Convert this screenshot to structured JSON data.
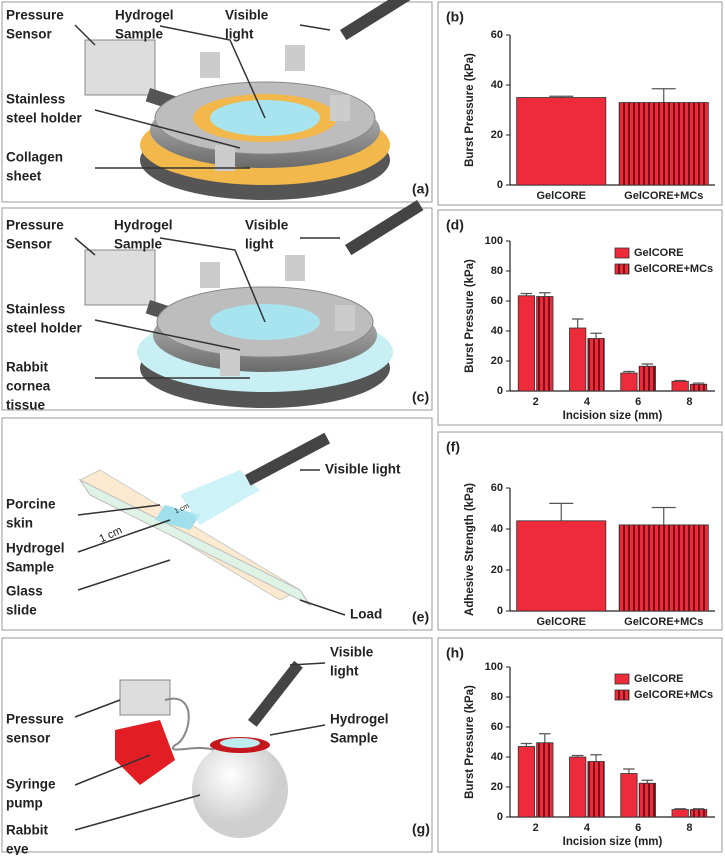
{
  "diagrams": [
    {
      "panel": "(a)",
      "labels": [
        [
          "Pressure",
          "Sensor"
        ],
        [
          "Hydrogel",
          "Sample"
        ],
        [
          "Visible",
          "light"
        ],
        [
          "Stainless",
          "steel holder"
        ],
        [
          "Collagen",
          "sheet"
        ]
      ]
    },
    {
      "panel": "(c)",
      "labels": [
        [
          "Pressure",
          "Sensor"
        ],
        [
          "Hydrogel",
          "Sample"
        ],
        [
          "Visible",
          "light"
        ],
        [
          "Stainless",
          "steel holder"
        ],
        [
          "Rabbit",
          "cornea",
          "tissue"
        ]
      ]
    },
    {
      "panel": "(e)",
      "labels": [
        [
          "Visible light"
        ],
        [
          "Porcine",
          "skin"
        ],
        [
          "Hydrogel",
          "Sample"
        ],
        [
          "Glass",
          "slide"
        ],
        [
          "Load"
        ]
      ],
      "scale_labels": [
        "1 cm",
        "1 cm"
      ]
    },
    {
      "panel": "(g)",
      "labels": [
        [
          "Visible",
          "light"
        ],
        [
          "Pressure",
          "sensor"
        ],
        [
          "Hydrogel",
          "Sample"
        ],
        [
          "Syringe",
          "pump"
        ],
        [
          "Rabbit",
          "eye"
        ]
      ]
    }
  ],
  "chart_data": [
    {
      "type": "bar",
      "panel": "(b)",
      "y_label": "Burst Pressure (kPa)",
      "categories": [
        "GelCORE",
        "GelCORE+MCs"
      ],
      "series": [
        {
          "color": "#ee2b3b",
          "values": [
            35,
            33
          ],
          "errors": [
            0.5,
            5.5
          ],
          "hatch_by_category": [
            false,
            true
          ]
        }
      ],
      "ylim": [
        0,
        60
      ],
      "yticks": [
        0,
        20,
        40,
        60
      ]
    },
    {
      "type": "bar",
      "panel": "(d)",
      "y_label": "Burst Pressure (kPa)",
      "x_label": "Incision size (mm)",
      "categories": [
        2,
        4,
        6,
        8
      ],
      "series": [
        {
          "name": "GelCORE",
          "color": "#ee2b3b",
          "values": [
            63.5,
            42,
            12,
            6.5
          ],
          "errors": [
            1.5,
            6,
            1,
            0.5
          ],
          "hatch": false
        },
        {
          "name": "GelCORE+MCs",
          "color": "#ee2b3b",
          "values": [
            63,
            35,
            16.5,
            4.5
          ],
          "errors": [
            2.5,
            3.5,
            1.5,
            0.8
          ],
          "hatch": true
        }
      ],
      "ylim": [
        0,
        100
      ],
      "yticks": [
        0,
        20,
        40,
        60,
        80,
        100
      ],
      "legend": "upper right"
    },
    {
      "type": "bar",
      "panel": "(f)",
      "y_label": "Adhesive Strength (kPa)",
      "categories": [
        "GelCORE",
        "GelCORE+MCs"
      ],
      "series": [
        {
          "color": "#ee2b3b",
          "values": [
            44,
            42
          ],
          "errors": [
            8.5,
            8.5
          ],
          "hatch_by_category": [
            false,
            true
          ]
        }
      ],
      "ylim": [
        0,
        60
      ],
      "yticks": [
        0,
        20,
        40,
        60
      ]
    },
    {
      "type": "bar",
      "panel": "(h)",
      "y_label": "Burst Pressure (kPa)",
      "x_label": "Incision size (mm)",
      "categories": [
        2,
        4,
        6,
        8
      ],
      "series": [
        {
          "name": "GelCORE",
          "color": "#ee2b3b",
          "values": [
            47,
            40,
            29,
            5
          ],
          "errors": [
            2,
            1,
            3,
            0.5
          ],
          "hatch": false
        },
        {
          "name": "GelCORE+MCs",
          "color": "#ee2b3b",
          "values": [
            49.5,
            37,
            22.5,
            5
          ],
          "errors": [
            6,
            4.5,
            2,
            0.5
          ],
          "hatch": true
        }
      ],
      "ylim": [
        0,
        100
      ],
      "yticks": [
        0,
        20,
        40,
        60,
        80,
        100
      ],
      "legend": "upper right"
    }
  ]
}
